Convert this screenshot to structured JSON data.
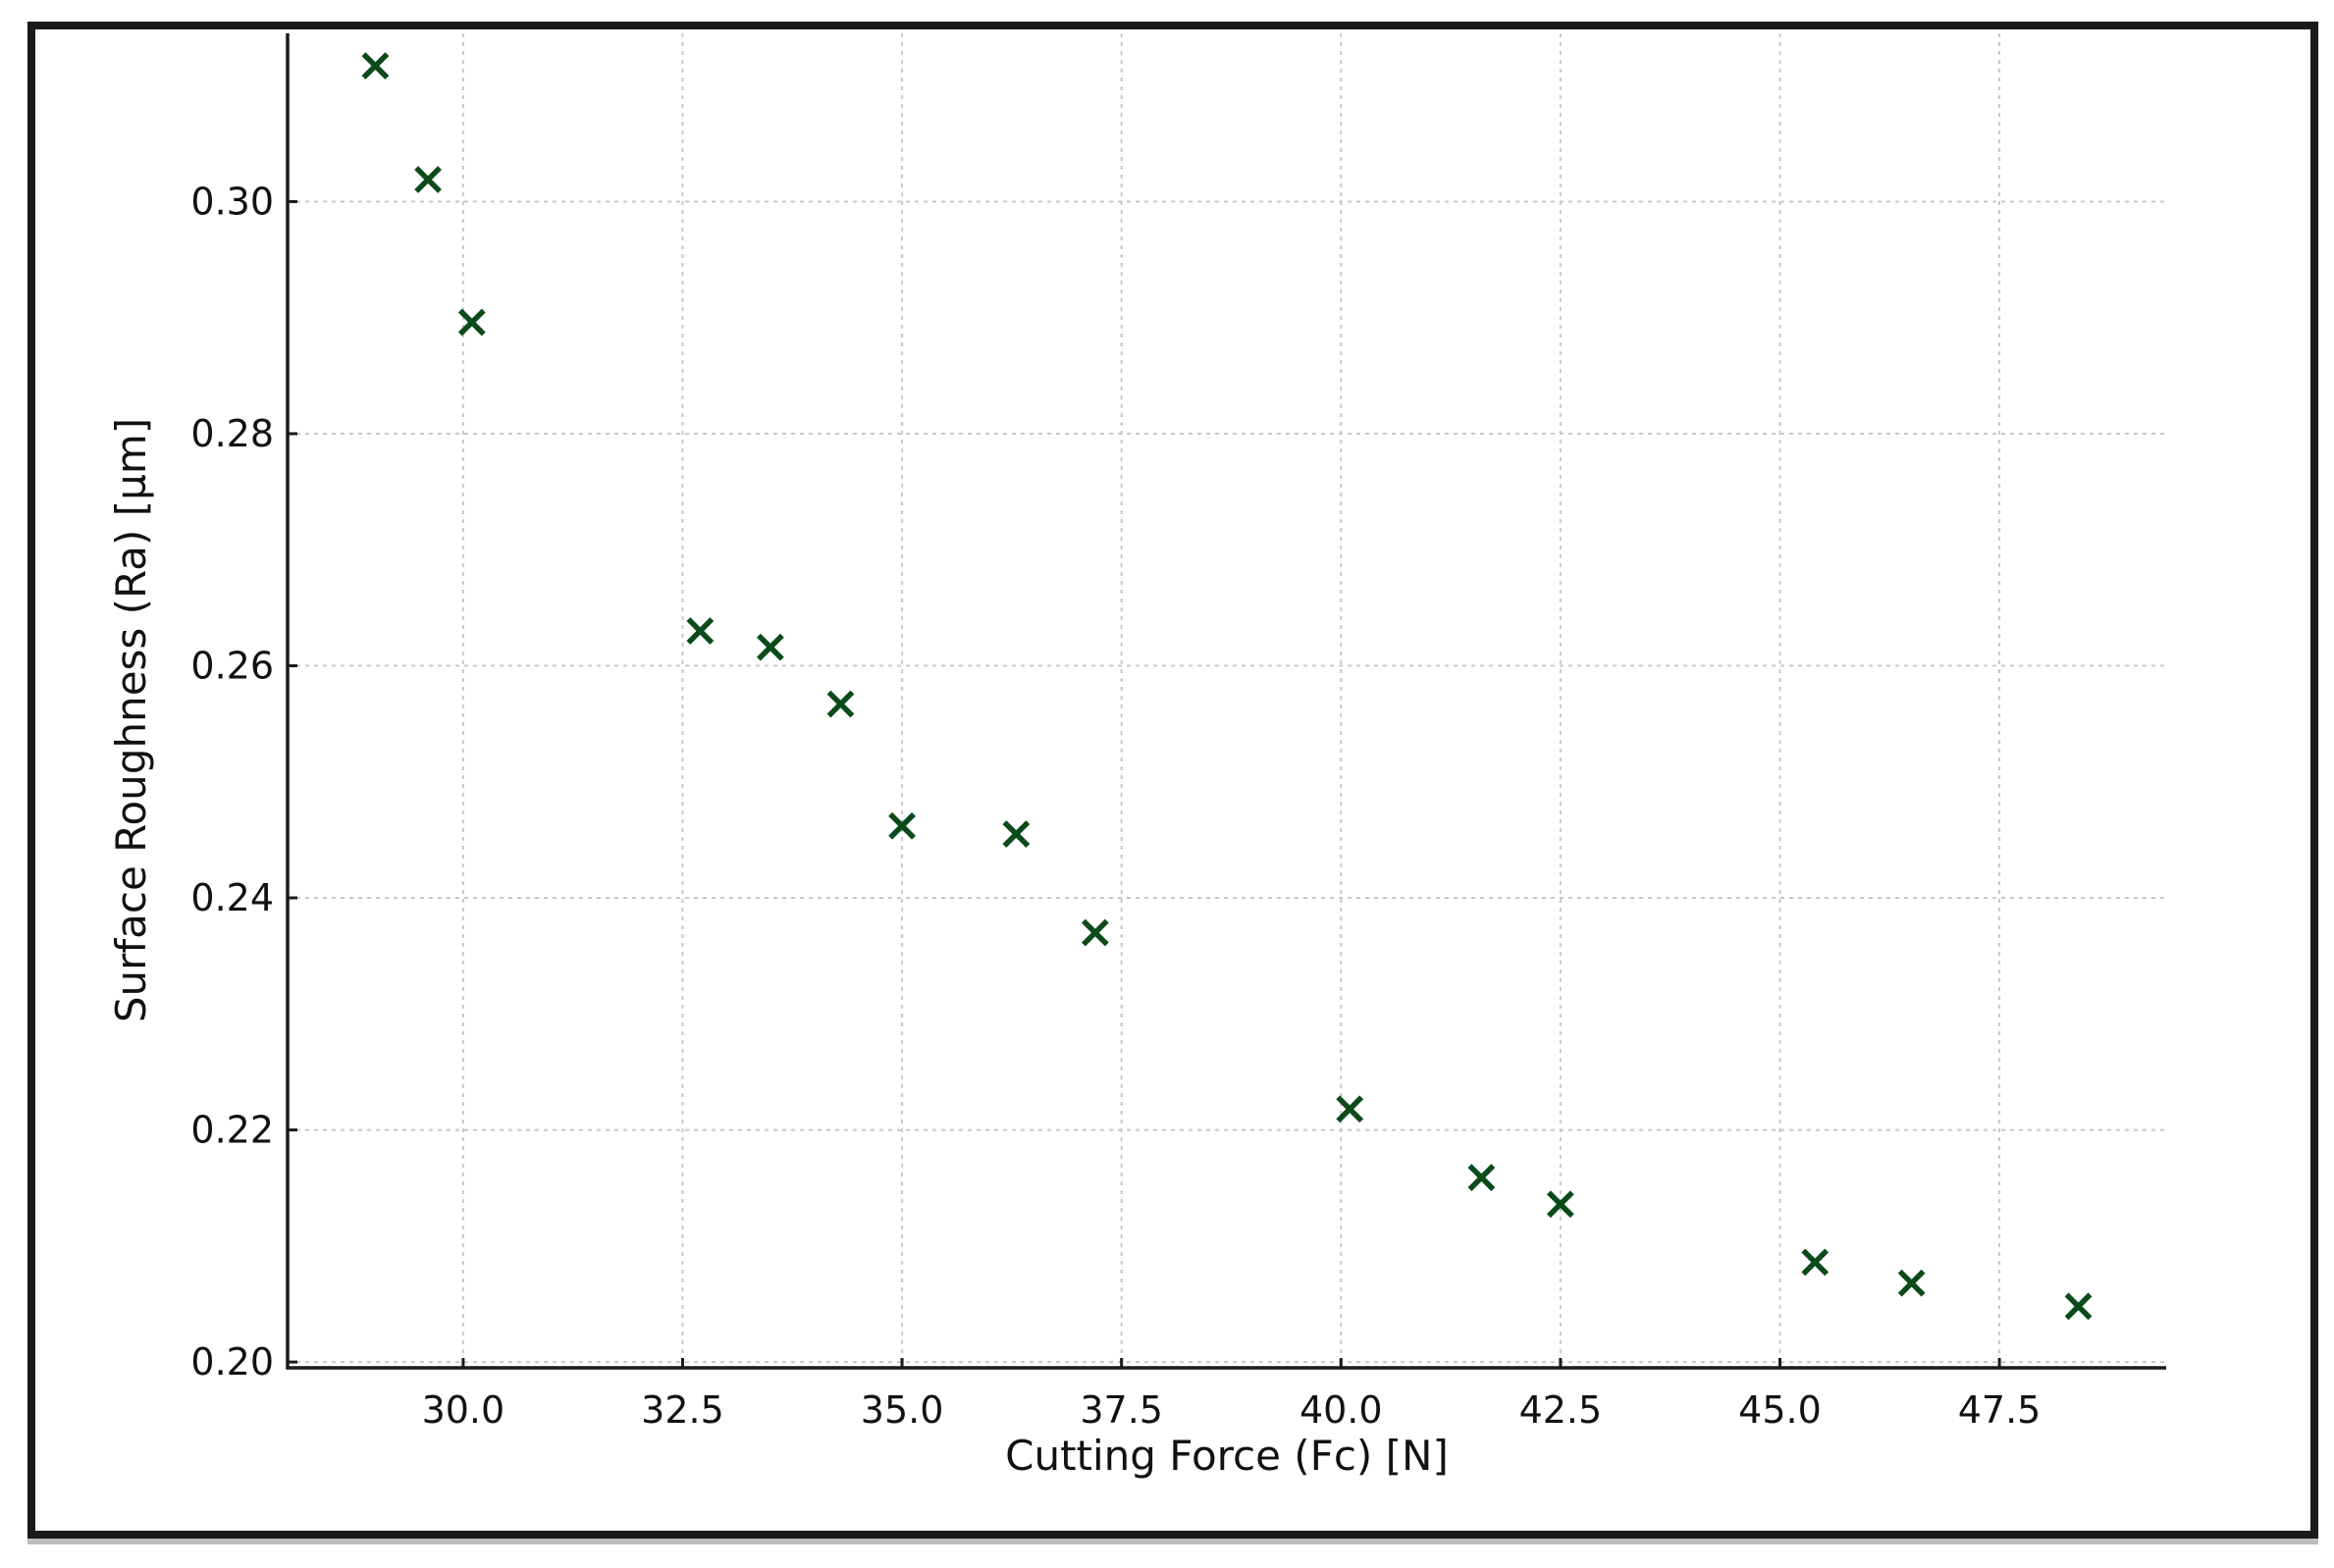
{
  "chart_data": {
    "type": "scatter",
    "xlabel": "Cutting Force (Fc) [N]",
    "ylabel": "Surface Roughness (Ra) [µm]",
    "xlim": [
      28.0,
      49.4
    ],
    "ylim": [
      0.1995,
      0.3145
    ],
    "xticks": [
      "30.0",
      "32.5",
      "35.0",
      "37.5",
      "40.0",
      "42.5",
      "45.0",
      "47.5"
    ],
    "yticks": [
      "0.20",
      "0.22",
      "0.24",
      "0.26",
      "0.28",
      "0.30"
    ],
    "grid": true,
    "marker": "x",
    "color": "#0b4a1a",
    "series": [
      {
        "x": [
          29.0,
          29.6,
          30.1,
          32.7,
          33.5,
          34.3,
          35.0,
          36.3,
          37.2,
          40.1,
          41.6,
          42.5,
          45.4,
          46.5,
          48.4
        ],
        "y": [
          0.3117,
          0.3019,
          0.2896,
          0.263,
          0.2616,
          0.2567,
          0.2462,
          0.2455,
          0.237,
          0.2218,
          0.2159,
          0.2136,
          0.2086,
          0.2068,
          0.2048
        ]
      }
    ]
  }
}
